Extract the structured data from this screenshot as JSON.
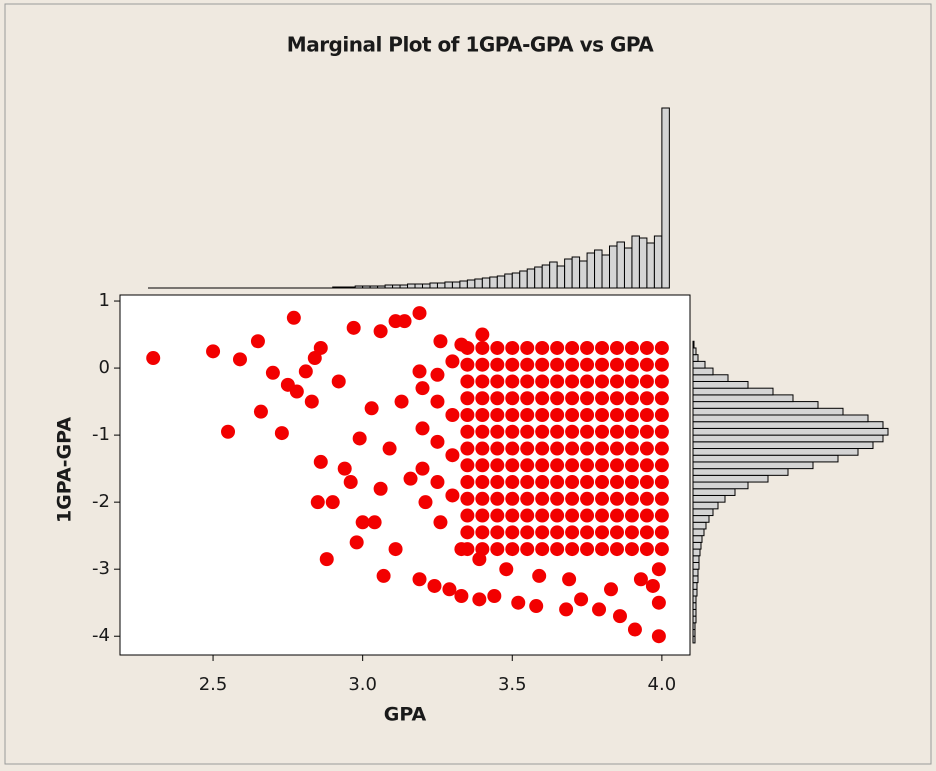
{
  "chart_data": {
    "type": "scatter",
    "title": "Marginal Plot of 1GPA-GPA vs GPA",
    "x_label": "GPA",
    "y_label": "1GPA-GPA",
    "color": "#f20000",
    "xlim": [
      2.189,
      4.094
    ],
    "ylim": [
      -4.28,
      1.09
    ],
    "xticks": [
      2.5,
      {
        "value": 3,
        "label": "3.0"
      },
      3.5,
      {
        "value": 4,
        "label": "4.0"
      }
    ],
    "yticks": [
      1,
      0,
      -1,
      -2,
      -3,
      -4
    ],
    "x": [
      2.3,
      2.5,
      2.55,
      2.59,
      2.65,
      2.66,
      2.7,
      2.73,
      2.77,
      2.75,
      2.78,
      2.81,
      2.83,
      2.85,
      2.86,
      2.88,
      2.9,
      2.84,
      2.86,
      2.92,
      2.94,
      2.96,
      2.98,
      2.97,
      3.0,
      3.04,
      3.07,
      3.06,
      3.11,
      3.14,
      3.19,
      3.11,
      3.19,
      3.24,
      3.29,
      3.33,
      3.39,
      3.44,
      3.52,
      3.58,
      3.68,
      3.73,
      3.79,
      3.86,
      3.91,
      3.99,
      3.99,
      3.97,
      3.93,
      3.99,
      3.4,
      3.33,
      3.26,
      3.19,
      3.13,
      3.09,
      3.16,
      3.21,
      3.06,
      3.26,
      3.33,
      3.39,
      3.48,
      3.59,
      3.69,
      3.83,
      3.03,
      2.99,
      3.2,
      3.25,
      3.3,
      3.2,
      3.25,
      3.3,
      3.2,
      3.25,
      3.3,
      3.25,
      3.3,
      3.35,
      3.4,
      3.45,
      3.5,
      3.55,
      3.6,
      3.65,
      3.7,
      3.75,
      3.8,
      3.85,
      3.9,
      3.95,
      4.0,
      3.35,
      3.4,
      3.45,
      3.5,
      3.55,
      3.6,
      3.65,
      3.7,
      3.75,
      3.8,
      3.85,
      3.9,
      3.95,
      4.0,
      3.35,
      3.4,
      3.45,
      3.5,
      3.55,
      3.6,
      3.65,
      3.7,
      3.75,
      3.8,
      3.85,
      3.9,
      3.95,
      4.0,
      3.35,
      3.4,
      3.45,
      3.5,
      3.55,
      3.6,
      3.65,
      3.7,
      3.75,
      3.8,
      3.85,
      3.9,
      3.95,
      4.0,
      3.35,
      3.4,
      3.45,
      3.5,
      3.55,
      3.6,
      3.65,
      3.7,
      3.75,
      3.8,
      3.85,
      3.9,
      3.95,
      4.0,
      3.35,
      3.4,
      3.45,
      3.5,
      3.55,
      3.6,
      3.65,
      3.7,
      3.75,
      3.8,
      3.85,
      3.9,
      3.95,
      4.0,
      3.35,
      3.4,
      3.45,
      3.5,
      3.55,
      3.6,
      3.65,
      3.7,
      3.75,
      3.8,
      3.85,
      3.9,
      3.95,
      4.0,
      3.35,
      3.4,
      3.45,
      3.5,
      3.55,
      3.6,
      3.65,
      3.7,
      3.75,
      3.8,
      3.85,
      3.9,
      3.95,
      4.0,
      3.35,
      3.4,
      3.45,
      3.5,
      3.55,
      3.6,
      3.65,
      3.7,
      3.75,
      3.8,
      3.85,
      3.9,
      3.95,
      4.0,
      3.35,
      3.4,
      3.45,
      3.5,
      3.55,
      3.6,
      3.65,
      3.7,
      3.75,
      3.8,
      3.85,
      3.9,
      3.95,
      4.0,
      3.35,
      3.4,
      3.45,
      3.5,
      3.55,
      3.6,
      3.65,
      3.7,
      3.75,
      3.8,
      3.85,
      3.9,
      3.95,
      4.0,
      3.35,
      3.4,
      3.45,
      3.5,
      3.55,
      3.6,
      3.65,
      3.7,
      3.75,
      3.8,
      3.85,
      3.9,
      3.95,
      4.0,
      3.35,
      3.4,
      3.45,
      3.5,
      3.55,
      3.6,
      3.65,
      3.7,
      3.75,
      3.8,
      3.85,
      3.9,
      3.95,
      4.0
    ],
    "y": [
      0.15,
      0.25,
      -0.95,
      0.13,
      0.4,
      -0.65,
      -0.07,
      -0.97,
      0.75,
      -0.25,
      -0.35,
      -0.05,
      -0.5,
      -2.0,
      -1.4,
      -2.85,
      -2.0,
      0.15,
      0.3,
      -0.2,
      -1.5,
      -1.7,
      -2.6,
      0.6,
      -2.3,
      -2.3,
      -3.1,
      0.55,
      0.7,
      0.7,
      0.82,
      -2.7,
      -3.15,
      -3.25,
      -3.3,
      -3.4,
      -3.45,
      -3.4,
      -3.5,
      -3.55,
      -3.6,
      -3.45,
      -3.6,
      -3.7,
      -3.9,
      -4.0,
      -3.5,
      -3.25,
      -3.15,
      -3.0,
      0.5,
      0.35,
      0.4,
      -0.05,
      -0.5,
      -1.2,
      -1.65,
      -2.0,
      -1.8,
      -2.3,
      -2.7,
      -2.85,
      -3.0,
      -3.1,
      -3.15,
      -3.3,
      -0.6,
      -1.05,
      -0.3,
      -0.5,
      -0.7,
      -0.9,
      -1.1,
      -1.3,
      -1.5,
      -1.7,
      -1.9,
      -0.1,
      0.1,
      0.3,
      0.3,
      0.3,
      0.3,
      0.3,
      0.3,
      0.3,
      0.3,
      0.3,
      0.3,
      0.3,
      0.3,
      0.3,
      0.3,
      0.05,
      0.05,
      0.05,
      0.05,
      0.05,
      0.05,
      0.05,
      0.05,
      0.05,
      0.05,
      0.05,
      0.05,
      0.05,
      0.05,
      -0.2,
      -0.2,
      -0.2,
      -0.2,
      -0.2,
      -0.2,
      -0.2,
      -0.2,
      -0.2,
      -0.2,
      -0.2,
      -0.2,
      -0.2,
      -0.2,
      -0.45,
      -0.45,
      -0.45,
      -0.45,
      -0.45,
      -0.45,
      -0.45,
      -0.45,
      -0.45,
      -0.45,
      -0.45,
      -0.45,
      -0.45,
      -0.45,
      -0.7,
      -0.7,
      -0.7,
      -0.7,
      -0.7,
      -0.7,
      -0.7,
      -0.7,
      -0.7,
      -0.7,
      -0.7,
      -0.7,
      -0.7,
      -0.7,
      -0.95,
      -0.95,
      -0.95,
      -0.95,
      -0.95,
      -0.95,
      -0.95,
      -0.95,
      -0.95,
      -0.95,
      -0.95,
      -0.95,
      -0.95,
      -0.95,
      -1.2,
      -1.2,
      -1.2,
      -1.2,
      -1.2,
      -1.2,
      -1.2,
      -1.2,
      -1.2,
      -1.2,
      -1.2,
      -1.2,
      -1.2,
      -1.2,
      -1.45,
      -1.45,
      -1.45,
      -1.45,
      -1.45,
      -1.45,
      -1.45,
      -1.45,
      -1.45,
      -1.45,
      -1.45,
      -1.45,
      -1.45,
      -1.45,
      -1.7,
      -1.7,
      -1.7,
      -1.7,
      -1.7,
      -1.7,
      -1.7,
      -1.7,
      -1.7,
      -1.7,
      -1.7,
      -1.7,
      -1.7,
      -1.7,
      -1.95,
      -1.95,
      -1.95,
      -1.95,
      -1.95,
      -1.95,
      -1.95,
      -1.95,
      -1.95,
      -1.95,
      -1.95,
      -1.95,
      -1.95,
      -1.95,
      -2.2,
      -2.2,
      -2.2,
      -2.2,
      -2.2,
      -2.2,
      -2.2,
      -2.2,
      -2.2,
      -2.2,
      -2.2,
      -2.2,
      -2.2,
      -2.2,
      -2.45,
      -2.45,
      -2.45,
      -2.45,
      -2.45,
      -2.45,
      -2.45,
      -2.45,
      -2.45,
      -2.45,
      -2.45,
      -2.45,
      -2.45,
      -2.45,
      -2.7,
      -2.7,
      -2.7,
      -2.7,
      -2.7,
      -2.7,
      -2.7,
      -2.7,
      -2.7,
      -2.7,
      -2.7,
      -2.7,
      -2.7,
      -2.7
    ],
    "marginal_x": {
      "type": "histogram",
      "color": "#d4d4d4",
      "bins": [
        2.9,
        2.925,
        2.95,
        2.975,
        3.0,
        3.025,
        3.05,
        3.075,
        3.1,
        3.125,
        3.15,
        3.175,
        3.2,
        3.225,
        3.25,
        3.275,
        3.3,
        3.325,
        3.35,
        3.375,
        3.4,
        3.425,
        3.45,
        3.475,
        3.5,
        3.525,
        3.55,
        3.575,
        3.6,
        3.625,
        3.65,
        3.675,
        3.7,
        3.725,
        3.75,
        3.775,
        3.8,
        3.825,
        3.85,
        3.875,
        3.9,
        3.925,
        3.95,
        3.975,
        4.0,
        4.025
      ],
      "counts": [
        1,
        1,
        1,
        2,
        2,
        2,
        2,
        3,
        3,
        3,
        4,
        4,
        4,
        5,
        5,
        6,
        6,
        7,
        8,
        9,
        10,
        11,
        12,
        14,
        15,
        17,
        19,
        21,
        23,
        26,
        22,
        29,
        31,
        27,
        35,
        38,
        33,
        42,
        46,
        40,
        52,
        50,
        45,
        52,
        180
      ],
      "count_lim": [
        0,
        185
      ]
    },
    "marginal_y": {
      "type": "histogram",
      "color": "#d4d4d4",
      "bins": [
        -4.1,
        -4.0,
        -3.9,
        -3.8,
        -3.7,
        -3.6,
        -3.5,
        -3.4,
        -3.3,
        -3.2,
        -3.1,
        -3.0,
        -2.9,
        -2.8,
        -2.7,
        -2.6,
        -2.5,
        -2.4,
        -2.3,
        -2.2,
        -2.1,
        -2.0,
        -1.9,
        -1.8,
        -1.7,
        -1.6,
        -1.5,
        -1.4,
        -1.3,
        -1.2,
        -1.1,
        -1.0,
        -0.9,
        -0.8,
        -0.7,
        -0.6,
        -0.5,
        -0.4,
        -0.3,
        -0.2,
        -0.1,
        0.0,
        0.1,
        0.2,
        0.3,
        0.4
      ],
      "counts": [
        2,
        2,
        2,
        3,
        3,
        3,
        3,
        4,
        4,
        5,
        5,
        6,
        6,
        7,
        8,
        9,
        11,
        13,
        16,
        20,
        25,
        32,
        42,
        55,
        75,
        95,
        120,
        145,
        165,
        180,
        190,
        195,
        190,
        175,
        150,
        125,
        100,
        80,
        55,
        35,
        20,
        12,
        5,
        3,
        1
      ],
      "count_lim": [
        0,
        200
      ]
    }
  }
}
